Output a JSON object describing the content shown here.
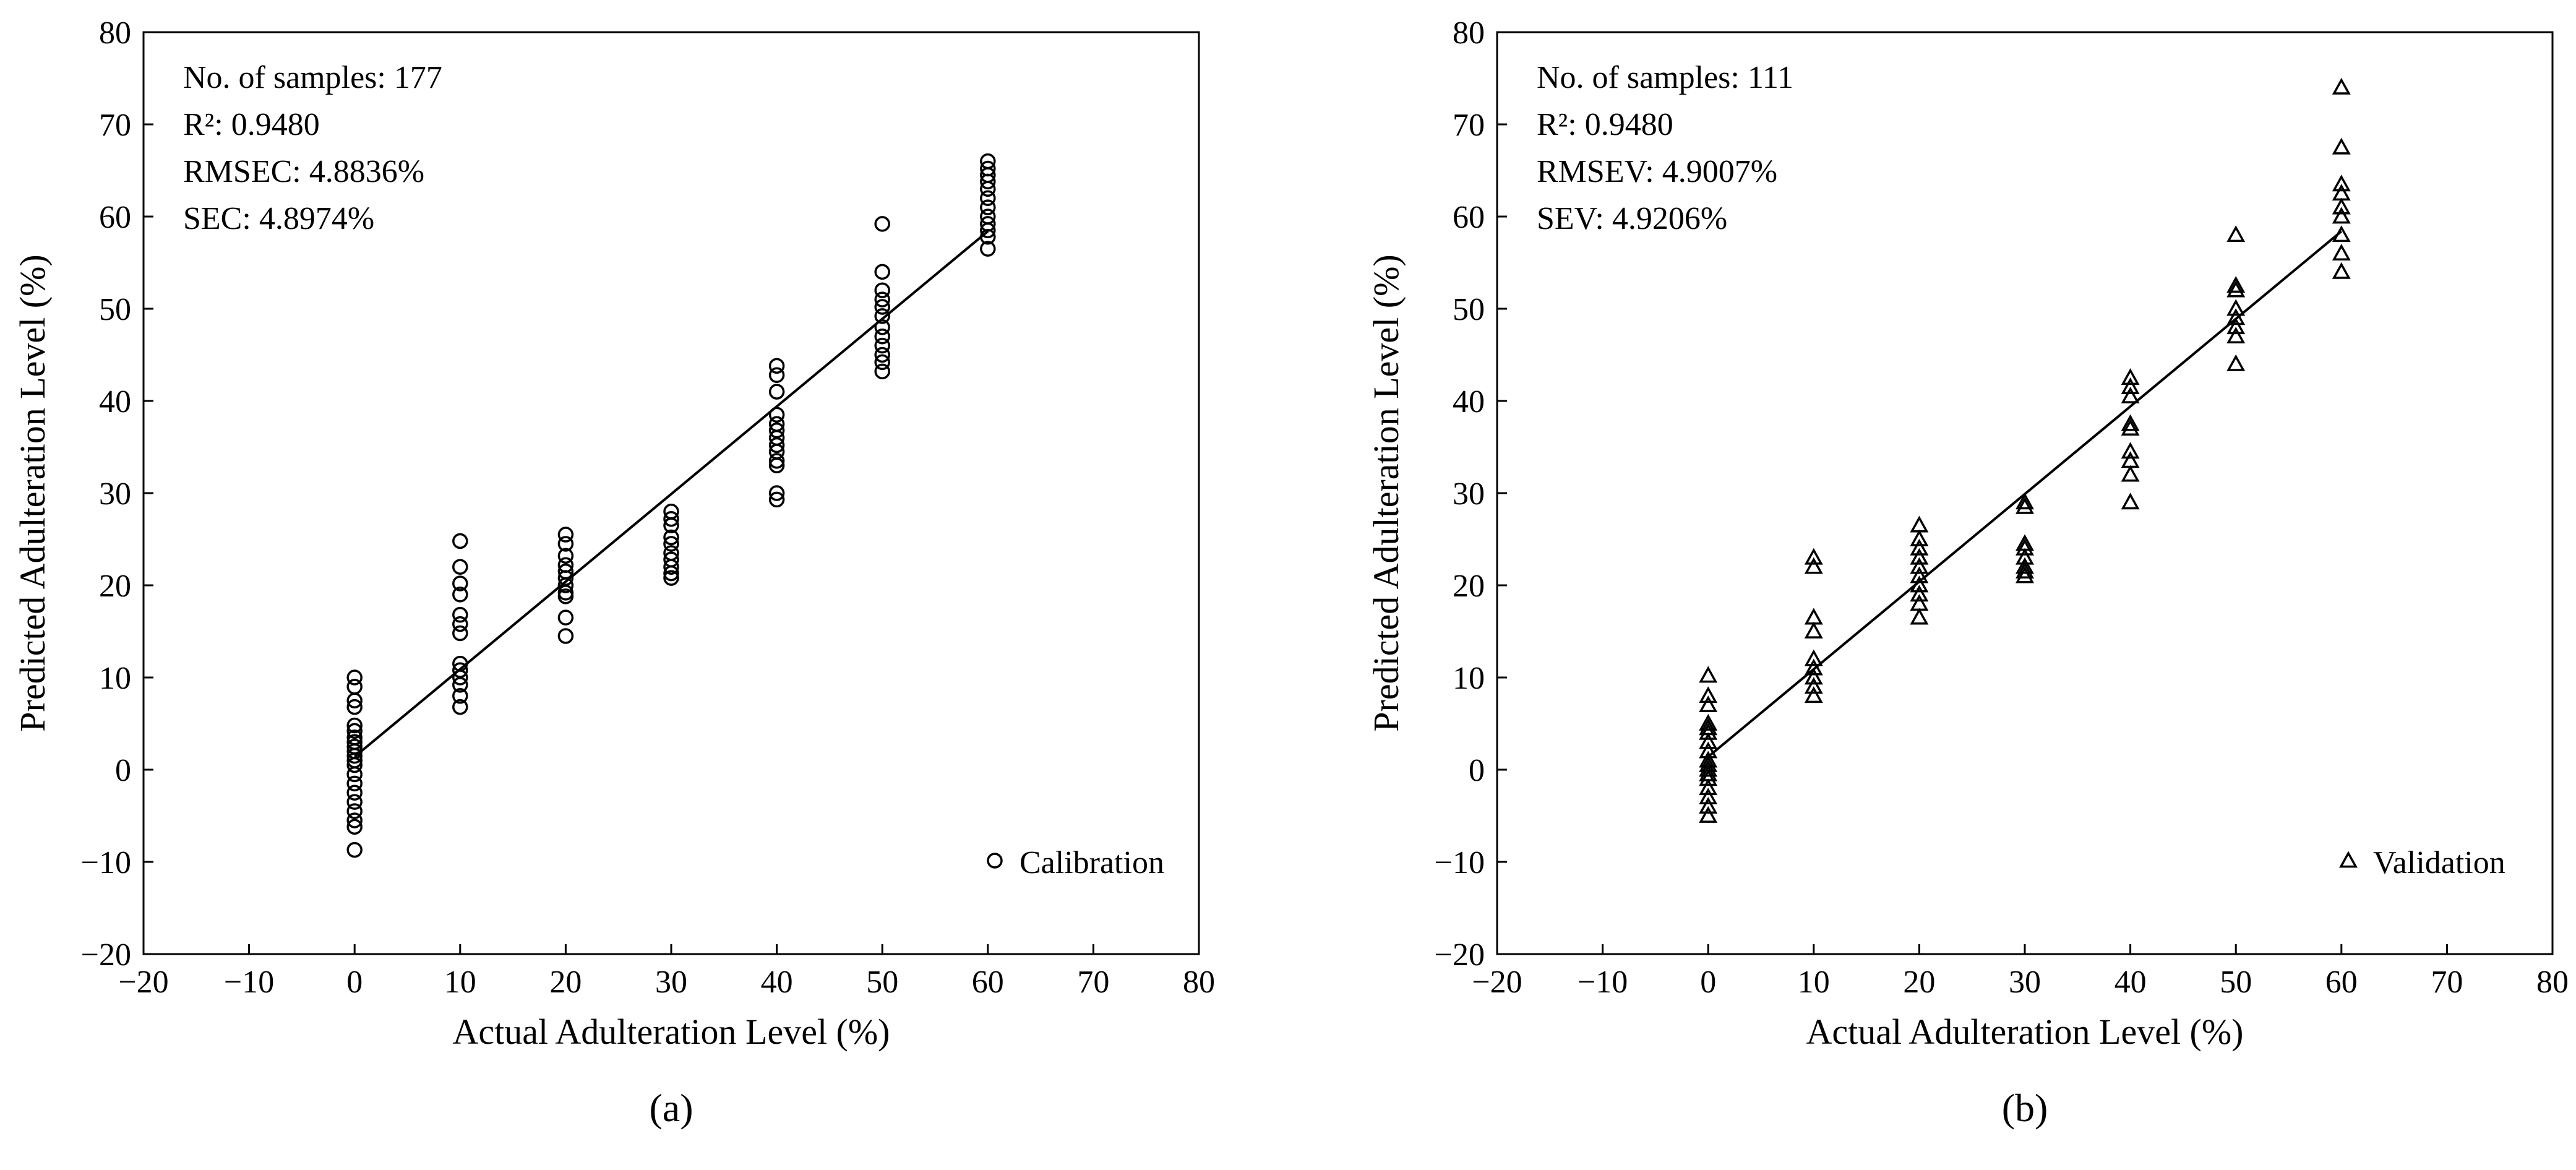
{
  "chart_data": [
    {
      "type": "scatter",
      "panel_label": "(a)",
      "xlabel": "Actual Adulteration Level (%)",
      "ylabel": "Predicted Adulteration Level (%)",
      "xlim": [
        -20,
        80
      ],
      "ylim": [
        -20,
        80
      ],
      "xticks": [
        -20,
        -10,
        0,
        10,
        20,
        30,
        40,
        50,
        60,
        70,
        80
      ],
      "yticks": [
        -20,
        -10,
        0,
        10,
        20,
        30,
        40,
        50,
        60,
        70,
        80
      ],
      "tick_labels_x": [
        "−20",
        "−10",
        "0",
        "10",
        "20",
        "30",
        "40",
        "50",
        "60",
        "70",
        "80"
      ],
      "tick_labels_y": [
        "−20",
        "−10",
        "0",
        "10",
        "20",
        "30",
        "40",
        "50",
        "60",
        "70",
        "80"
      ],
      "stats": [
        "No. of samples: 177",
        "R²: 0.9480",
        "RMSEC: 4.8836%",
        "SEC: 4.8974%"
      ],
      "legend": {
        "label": "Calibration",
        "marker": "circle",
        "position": "bottom-right"
      },
      "fit_line": {
        "x": [
          0,
          60
        ],
        "y": [
          1.4,
          58.4
        ]
      },
      "series": [
        {
          "name": "Calibration",
          "marker": "circle",
          "points": [
            [
              0,
              10.0
            ],
            [
              0,
              9.0
            ],
            [
              0,
              7.5
            ],
            [
              0,
              6.8
            ],
            [
              0,
              4.8
            ],
            [
              0,
              4.2
            ],
            [
              0,
              3.5
            ],
            [
              0,
              3.0
            ],
            [
              0,
              2.5
            ],
            [
              0,
              2.0
            ],
            [
              0,
              1.5
            ],
            [
              0,
              1.0
            ],
            [
              0,
              0.5
            ],
            [
              0,
              -0.5
            ],
            [
              0,
              -1.5
            ],
            [
              0,
              -2.5
            ],
            [
              0,
              -3.5
            ],
            [
              0,
              -4.5
            ],
            [
              0,
              -5.5
            ],
            [
              0,
              -6.2
            ],
            [
              0,
              -8.7
            ],
            [
              10,
              24.8
            ],
            [
              10,
              22.0
            ],
            [
              10,
              20.2
            ],
            [
              10,
              19.0
            ],
            [
              10,
              16.8
            ],
            [
              10,
              15.8
            ],
            [
              10,
              14.8
            ],
            [
              10,
              11.5
            ],
            [
              10,
              10.8
            ],
            [
              10,
              10.0
            ],
            [
              10,
              9.2
            ],
            [
              10,
              8.0
            ],
            [
              10,
              6.8
            ],
            [
              20,
              25.5
            ],
            [
              20,
              24.5
            ],
            [
              20,
              23.2
            ],
            [
              20,
              22.2
            ],
            [
              20,
              21.5
            ],
            [
              20,
              20.8
            ],
            [
              20,
              20.0
            ],
            [
              20,
              19.2
            ],
            [
              20,
              18.8
            ],
            [
              20,
              16.5
            ],
            [
              20,
              14.5
            ],
            [
              30,
              28.0
            ],
            [
              30,
              27.2
            ],
            [
              30,
              26.5
            ],
            [
              30,
              25.2
            ],
            [
              30,
              24.5
            ],
            [
              30,
              23.5
            ],
            [
              30,
              22.8
            ],
            [
              30,
              22.0
            ],
            [
              30,
              21.3
            ],
            [
              30,
              20.8
            ],
            [
              40,
              43.8
            ],
            [
              40,
              42.8
            ],
            [
              40,
              41.0
            ],
            [
              40,
              38.5
            ],
            [
              40,
              37.5
            ],
            [
              40,
              36.8
            ],
            [
              40,
              36.0
            ],
            [
              40,
              35.2
            ],
            [
              40,
              34.5
            ],
            [
              40,
              33.5
            ],
            [
              40,
              33.0
            ],
            [
              40,
              30.0
            ],
            [
              40,
              29.3
            ],
            [
              50,
              59.2
            ],
            [
              50,
              54.0
            ],
            [
              50,
              52.0
            ],
            [
              50,
              51.0
            ],
            [
              50,
              50.2
            ],
            [
              50,
              49.2
            ],
            [
              50,
              48.0
            ],
            [
              50,
              47.0
            ],
            [
              50,
              46.0
            ],
            [
              50,
              45.0
            ],
            [
              50,
              44.2
            ],
            [
              50,
              43.2
            ],
            [
              60,
              66.0
            ],
            [
              60,
              65.2
            ],
            [
              60,
              64.5
            ],
            [
              60,
              63.8
            ],
            [
              60,
              63.0
            ],
            [
              60,
              62.0
            ],
            [
              60,
              61.0
            ],
            [
              60,
              60.0
            ],
            [
              60,
              59.2
            ],
            [
              60,
              58.5
            ],
            [
              60,
              57.8
            ],
            [
              60,
              56.5
            ]
          ]
        }
      ]
    },
    {
      "type": "scatter",
      "panel_label": "(b)",
      "xlabel": "Actual Adulteration Level (%)",
      "ylabel": "Predicted Adulteration Level (%)",
      "xlim": [
        -20,
        80
      ],
      "ylim": [
        -20,
        80
      ],
      "xticks": [
        -20,
        -10,
        0,
        10,
        20,
        30,
        40,
        50,
        60,
        70,
        80
      ],
      "yticks": [
        -20,
        -10,
        0,
        10,
        20,
        30,
        40,
        50,
        60,
        70,
        80
      ],
      "tick_labels_x": [
        "−20",
        "−10",
        "0",
        "10",
        "20",
        "30",
        "40",
        "50",
        "60",
        "70",
        "80"
      ],
      "tick_labels_y": [
        "−20",
        "−10",
        "0",
        "10",
        "20",
        "30",
        "40",
        "50",
        "60",
        "70",
        "80"
      ],
      "stats": [
        "No. of samples: 111",
        "R²: 0.9480",
        "RMSEV: 4.9007%",
        "SEV: 4.9206%"
      ],
      "legend": {
        "label": "Validation",
        "marker": "triangle",
        "position": "bottom-right"
      },
      "fit_line": {
        "x": [
          0,
          60
        ],
        "y": [
          1.4,
          58.4
        ]
      },
      "series": [
        {
          "name": "Validation",
          "marker": "triangle",
          "points": [
            [
              0,
              10.2
            ],
            [
              0,
              8.0
            ],
            [
              0,
              7.0
            ],
            [
              0,
              5.0
            ],
            [
              0,
              4.5
            ],
            [
              0,
              4.0
            ],
            [
              0,
              3.0
            ],
            [
              0,
              2.0
            ],
            [
              0,
              1.0
            ],
            [
              0,
              0.5
            ],
            [
              0,
              0.0
            ],
            [
              0,
              -0.5
            ],
            [
              0,
              -1.0
            ],
            [
              0,
              -2.0
            ],
            [
              0,
              -3.0
            ],
            [
              0,
              -4.0
            ],
            [
              0,
              -5.0
            ],
            [
              10,
              23.0
            ],
            [
              10,
              22.0
            ],
            [
              10,
              16.5
            ],
            [
              10,
              15.0
            ],
            [
              10,
              12.0
            ],
            [
              10,
              11.0
            ],
            [
              10,
              10.0
            ],
            [
              10,
              9.0
            ],
            [
              10,
              8.0
            ],
            [
              20,
              26.5
            ],
            [
              20,
              25.0
            ],
            [
              20,
              24.0
            ],
            [
              20,
              23.0
            ],
            [
              20,
              22.0
            ],
            [
              20,
              21.0
            ],
            [
              20,
              20.0
            ],
            [
              20,
              19.0
            ],
            [
              20,
              18.0
            ],
            [
              20,
              16.5
            ],
            [
              30,
              29.0
            ],
            [
              30,
              28.5
            ],
            [
              30,
              24.5
            ],
            [
              30,
              24.0
            ],
            [
              30,
              23.0
            ],
            [
              30,
              22.0
            ],
            [
              30,
              21.5
            ],
            [
              30,
              21.0
            ],
            [
              40,
              42.5
            ],
            [
              40,
              41.5
            ],
            [
              40,
              40.5
            ],
            [
              40,
              37.5
            ],
            [
              40,
              37.0
            ],
            [
              40,
              34.5
            ],
            [
              40,
              33.5
            ],
            [
              40,
              32.0
            ],
            [
              40,
              29.0
            ],
            [
              50,
              58.0
            ],
            [
              50,
              52.5
            ],
            [
              50,
              52.0
            ],
            [
              50,
              50.0
            ],
            [
              50,
              49.0
            ],
            [
              50,
              48.0
            ],
            [
              50,
              47.0
            ],
            [
              50,
              44.0
            ],
            [
              60,
              74.0
            ],
            [
              60,
              67.5
            ],
            [
              60,
              63.5
            ],
            [
              60,
              62.5
            ],
            [
              60,
              61.0
            ],
            [
              60,
              60.0
            ],
            [
              60,
              58.0
            ],
            [
              60,
              56.0
            ],
            [
              60,
              54.0
            ]
          ]
        }
      ]
    }
  ]
}
